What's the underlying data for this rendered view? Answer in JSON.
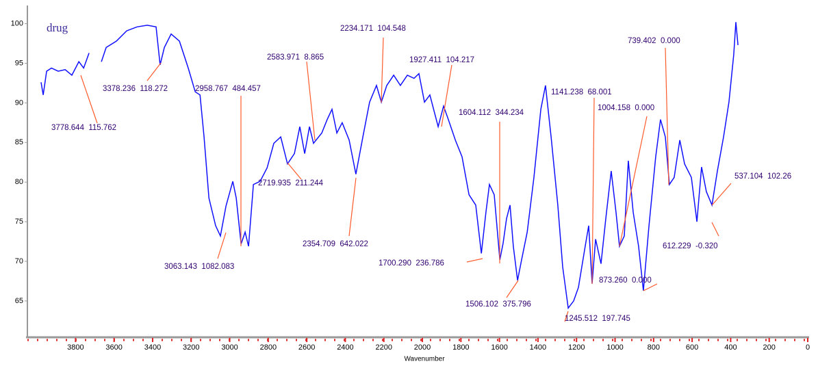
{
  "chart_data": {
    "type": "line",
    "title": "drug",
    "x_label": "Wavenumber",
    "xlim": [
      4050,
      0
    ],
    "ylim": [
      60.5,
      102.3
    ],
    "xticks": [
      3800,
      3600,
      3400,
      3200,
      3000,
      2800,
      2600,
      2400,
      2200,
      2000,
      1800,
      1600,
      1400,
      1200,
      1000,
      800,
      600,
      400,
      200,
      0
    ],
    "yticks": [
      65,
      70,
      75,
      80,
      85,
      90,
      95,
      100
    ],
    "series": [
      {
        "name": "drug",
        "color": "#1010ff",
        "x": [
          3979,
          3968,
          3950,
          3925,
          3890,
          3854,
          3819,
          3783,
          3758,
          3730,
          3700,
          3666,
          3641,
          3588,
          3535,
          3481,
          3428,
          3382,
          3361,
          3339,
          3304,
          3261,
          3215,
          3179,
          3154,
          3133,
          3108,
          3073,
          3048,
          3019,
          2984,
          2966,
          2941,
          2920,
          2902,
          2877,
          2842,
          2806,
          2771,
          2735,
          2700,
          2664,
          2636,
          2611,
          2586,
          2565,
          2522,
          2494,
          2469,
          2444,
          2416,
          2380,
          2345,
          2309,
          2274,
          2238,
          2213,
          2185,
          2149,
          2114,
          2078,
          2043,
          2018,
          1989,
          1961,
          1918,
          1890,
          1865,
          1829,
          1794,
          1758,
          1723,
          1694,
          1670,
          1652,
          1627,
          1598,
          1581,
          1563,
          1545,
          1528,
          1506,
          1485,
          1456,
          1421,
          1385,
          1361,
          1332,
          1297,
          1272,
          1243,
          1215,
          1190,
          1155,
          1137,
          1119,
          1101,
          1073,
          1048,
          1020,
          995,
          977,
          952,
          931,
          906,
          878,
          853,
          824,
          789,
          764,
          739,
          718,
          693,
          664,
          639,
          604,
          575,
          551,
          526,
          497,
          469,
          437,
          409,
          384,
          373,
          362
        ],
        "values": [
          92.6,
          91.0,
          94.0,
          94.4,
          94.0,
          94.2,
          93.5,
          95.2,
          94.4,
          96.3,
          null,
          95.2,
          97.0,
          97.8,
          99.1,
          99.6,
          99.8,
          99.6,
          94.8,
          97.0,
          98.7,
          97.8,
          94.4,
          91.4,
          91.0,
          85.7,
          78.0,
          74.5,
          73.2,
          77.0,
          80.1,
          78.0,
          72.2,
          73.7,
          71.9,
          79.7,
          80.1,
          81.8,
          84.9,
          85.7,
          82.3,
          83.6,
          87.0,
          83.6,
          87.0,
          84.9,
          86.2,
          87.9,
          89.2,
          86.2,
          87.5,
          85.3,
          81.0,
          85.7,
          90.1,
          92.2,
          90.1,
          92.2,
          93.5,
          92.2,
          93.5,
          93.1,
          93.7,
          90.1,
          91.0,
          87.0,
          89.6,
          87.9,
          85.3,
          83.2,
          78.4,
          77.1,
          71.0,
          76.2,
          79.7,
          78.4,
          70.2,
          72.3,
          75.4,
          77.1,
          71.9,
          67.6,
          70.2,
          73.7,
          80.6,
          89.2,
          92.2,
          85.7,
          77.1,
          69.3,
          64.1,
          65.0,
          66.7,
          71.9,
          74.5,
          67.2,
          72.8,
          69.7,
          75.4,
          81.4,
          76.2,
          71.9,
          73.2,
          82.7,
          76.2,
          71.9,
          66.3,
          74.5,
          83.2,
          87.9,
          85.7,
          79.7,
          80.6,
          85.3,
          82.3,
          80.6,
          75.0,
          81.9,
          78.8,
          77.1,
          81.4,
          85.7,
          90.1,
          96.1,
          100.2,
          97.3
        ]
      }
    ],
    "annotations": [
      "3778.644  115.762",
      "3378.236  118.272",
      "2958.767  484.457",
      "3063.143  1082.083",
      "2583.971  8.865",
      "2234.171  104.548",
      "1927.411  104.217",
      "2719.935  211.244",
      "2354.709  642.022",
      "1604.112  344.234",
      "1700.290  236.786",
      "1141.238  68.001",
      "1004.158  0.000",
      "739.402  0.000",
      "1506.102  375.796",
      "1245.512  197.745",
      "873.260  0.000",
      "612.229  -0.320",
      "537.104  102.26"
    ]
  }
}
